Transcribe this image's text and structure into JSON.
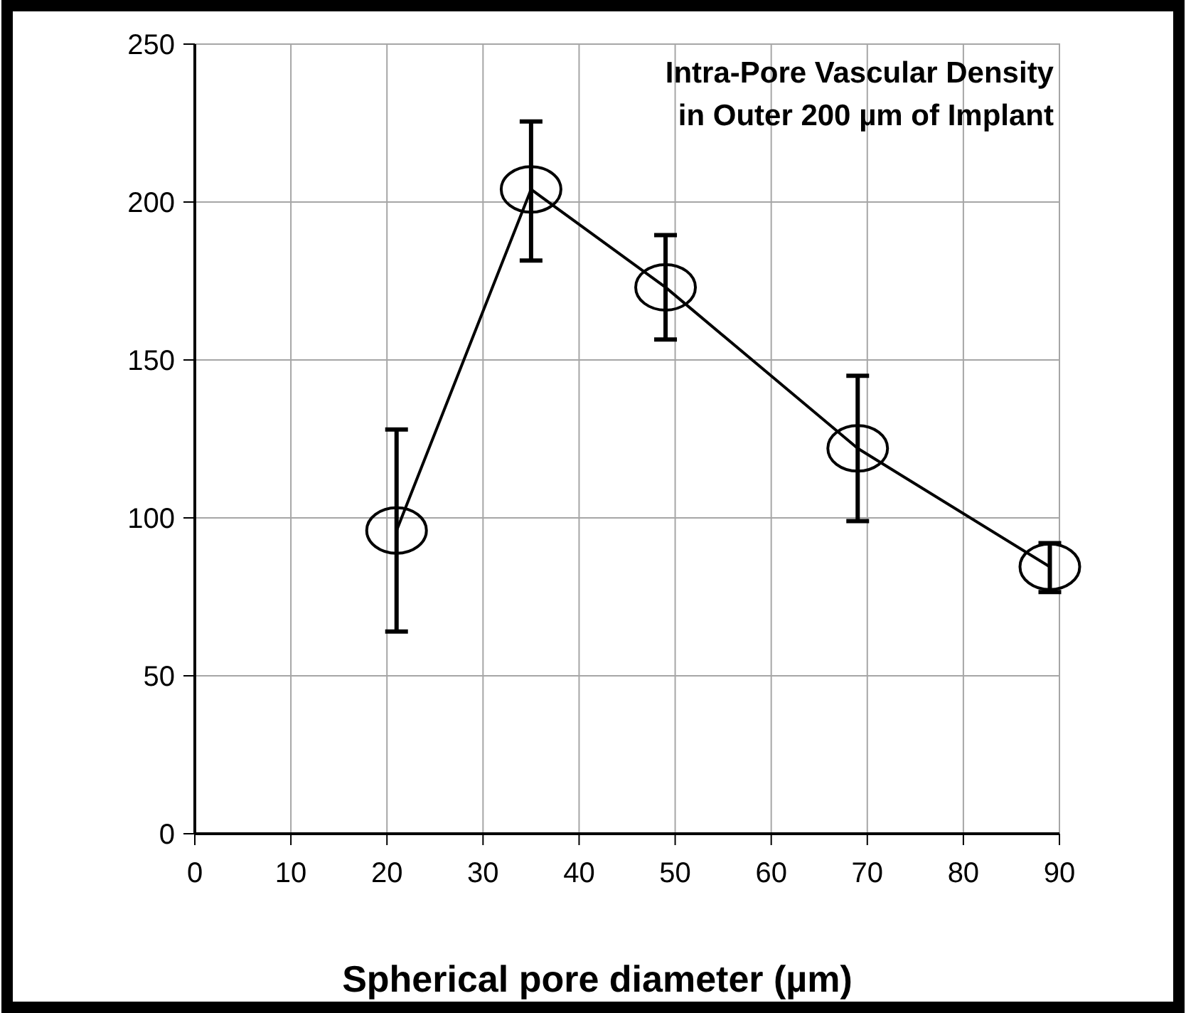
{
  "chart_data": {
    "type": "line",
    "title": "Intra-Pore Vascular Density\nin Outer 200 µm of Implant",
    "xlabel": "Spherical pore diameter (µm)",
    "x": [
      21,
      35,
      49,
      69,
      89
    ],
    "series": [
      {
        "color": "#000000",
        "values": [
          96,
          204,
          173,
          122,
          84.5
        ],
        "errors": [
          [
            64,
            128
          ],
          [
            181.5,
            225.5
          ],
          [
            156.5,
            189.5
          ],
          [
            99,
            145
          ],
          [
            76.5,
            92
          ]
        ]
      }
    ],
    "xlim": [
      0,
      90
    ],
    "xticks": [
      0,
      10,
      20,
      30,
      40,
      50,
      60,
      70,
      80,
      90
    ],
    "ylim": [
      0,
      250
    ],
    "yticks": [
      0,
      50,
      100,
      150,
      200,
      250
    ],
    "grid": true,
    "marker": "circle",
    "line_style": "solid"
  }
}
